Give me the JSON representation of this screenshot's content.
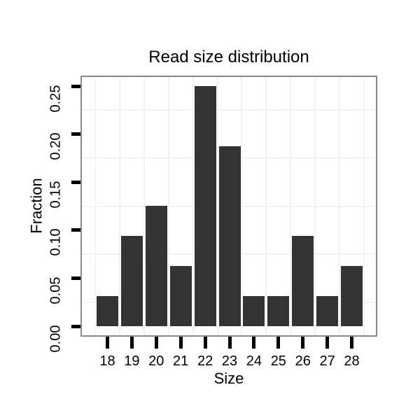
{
  "chart_data": {
    "type": "bar",
    "title": "Read size distribution",
    "xlabel": "Size",
    "ylabel": "Fraction",
    "categories": [
      "18",
      "19",
      "20",
      "21",
      "22",
      "23",
      "24",
      "25",
      "26",
      "27",
      "28"
    ],
    "values": [
      0.03125,
      0.09375,
      0.125,
      0.0625,
      0.25,
      0.1875,
      0.03125,
      0.03125,
      0.09375,
      0.03125,
      0.0625
    ],
    "y_ticks": [
      "0.00",
      "0.05",
      "0.10",
      "0.15",
      "0.20",
      "0.25"
    ],
    "ylim": [
      0,
      0.26
    ],
    "legend": "none",
    "grid": {
      "style": "faint lines between ticks",
      "horizontal_at": [
        0.025,
        0.075,
        0.125,
        0.175,
        0.225
      ],
      "vertical": "between-categories"
    },
    "colors": {
      "bar": "#333333",
      "panel_border": "#898989",
      "gridline": "#f2f2f2",
      "tick": "#000000",
      "text": "#000000",
      "background": "#ffffff"
    }
  }
}
